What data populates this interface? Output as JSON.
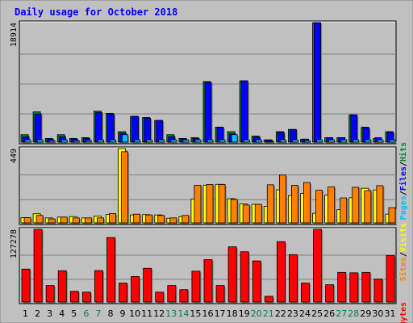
{
  "chart_data": {
    "type": "bar",
    "title": "Daily usage for October 2018",
    "x": [
      "1",
      "2",
      "3",
      "4",
      "5",
      "6",
      "7",
      "8",
      "9",
      "10",
      "11",
      "12",
      "13",
      "14",
      "15",
      "16",
      "17",
      "18",
      "19",
      "20",
      "21",
      "22",
      "23",
      "24",
      "25",
      "26",
      "27",
      "28",
      "29",
      "30",
      "31"
    ],
    "weekend_days": [
      "6",
      "7",
      "13",
      "14",
      "20",
      "21",
      "27",
      "28"
    ],
    "colors": {
      "background": "#c0c0c0",
      "border": "#808080",
      "title": "#0000ff",
      "hits": "#008040",
      "files": "#0000ff",
      "pages": "#00c0ff",
      "visits": "#ffff00",
      "sites": "#ff8000",
      "kbytes": "#ff0000",
      "weekend_label": "#00805c"
    },
    "panels": [
      {
        "name": "hits-files-pages",
        "ymax": 18914,
        "ymax_label": "18914",
        "legend": [
          "Pages",
          "/",
          "Files",
          "/",
          "Hits"
        ],
        "legend_colors": [
          "#00c0ff",
          "#000000",
          "#0000ff",
          "#000000",
          "#008040"
        ],
        "series": [
          {
            "name": "Hits",
            "values": [
              1183,
              4791,
              591,
              1183,
              591,
              710,
              4909,
              4554,
              1656,
              4081,
              3904,
              3431,
              1183,
              591,
              710,
              9582,
              2366,
              1656,
              9700,
              946,
              355,
              1656,
              2011,
              473,
              18914,
              710,
              710,
              4318,
              2366,
              591,
              1656
            ]
          },
          {
            "name": "Files",
            "values": [
              828,
              4436,
              473,
              828,
              473,
              591,
              4673,
              4436,
              1419,
              4081,
              3786,
              3431,
              828,
              473,
              591,
              9463,
              2366,
              1301,
              9700,
              828,
              355,
              1538,
              2011,
              473,
              18914,
              710,
              710,
              4318,
              2248,
              710,
              1538
            ]
          },
          {
            "name": "Pages",
            "values": [
              355,
              355,
              236,
              355,
              236,
              236,
              355,
              355,
              1183,
              355,
              355,
              355,
              355,
              355,
              355,
              355,
              355,
              1183,
              355,
              355,
              118,
              355,
              355,
              236,
              355,
              355,
              355,
              355,
              355,
              355,
              355
            ]
          }
        ]
      },
      {
        "name": "visits-sites",
        "ymax": 449,
        "ymax_label": "449",
        "legend": [
          "Sites",
          "/",
          "Visits"
        ],
        "legend_colors": [
          "#ff8000",
          "#000000",
          "#ffff00"
        ],
        "series": [
          {
            "name": "Visits",
            "values": [
              32,
              55,
              30,
              35,
              38,
              30,
              40,
              51,
              449,
              48,
              50,
              48,
              28,
              38,
              144,
              228,
              233,
              146,
              115,
              112,
              100,
              200,
              165,
              178,
              58,
              168,
              80,
              152,
              209,
              199,
              53
            ]
          },
          {
            "name": "Sites",
            "values": [
              32,
              45,
              24,
              35,
              30,
              30,
              30,
              56,
              430,
              53,
              48,
              45,
              30,
              45,
              227,
              232,
              232,
              142,
              108,
              112,
              230,
              289,
              227,
              244,
              197,
              218,
              151,
              215,
              195,
              225,
              92
            ]
          }
        ]
      },
      {
        "name": "kbytes",
        "ymax": 127278,
        "ymax_label": "127278",
        "legend": [
          "KBytes"
        ],
        "legend_colors": [
          "#ff0000"
        ],
        "series": [
          {
            "name": "KBytes",
            "values": [
              57610,
              127278,
              28803,
              54730,
              18723,
              17283,
              55090,
              112877,
              33123,
              44642,
              59050,
              17283,
              28803,
              21603,
              54010,
              74172,
              28803,
              96675,
              88035,
              72012,
              10082,
              105676,
              82995,
              33123,
              127278,
              30243,
              51850,
              51130,
              51850,
              40321,
              81634
            ]
          }
        ]
      }
    ]
  }
}
